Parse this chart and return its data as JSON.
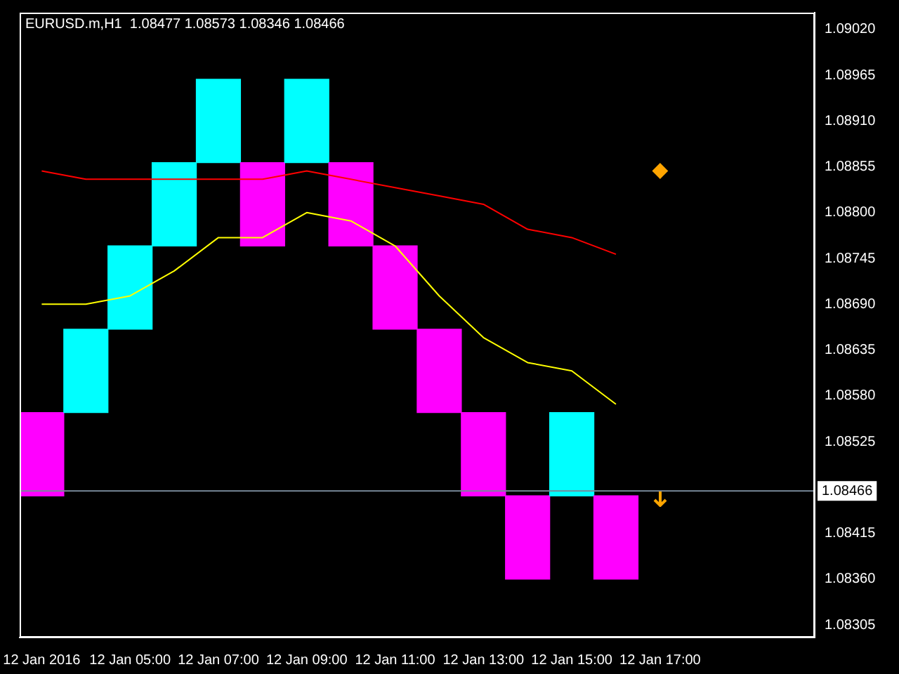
{
  "chart_data": {
    "type": "bar",
    "title": "EURUSD.m,H1  1.08477 1.08573 1.08346 1.08466",
    "categories": [
      "12 Jan 2016",
      null,
      "12 Jan 05:00",
      null,
      "12 Jan 07:00",
      null,
      "12 Jan 09:00",
      null,
      "12 Jan 11:00",
      null,
      "12 Jan 13:00",
      null,
      "12 Jan 15:00",
      null,
      "12 Jan 17:00",
      null,
      null,
      null
    ],
    "series": [
      {
        "values": [
          0.001,
          0.001,
          0.001,
          0.001,
          0.001,
          0.001,
          0.001,
          0.001,
          0.001,
          0.001,
          0.001,
          0.001,
          0.001,
          0.001,
          null,
          null,
          null,
          null
        ],
        "base": [
          1.0846,
          1.0856,
          1.0866,
          1.0876,
          1.0886,
          1.0876,
          1.0886,
          1.0876,
          1.0866,
          1.0856,
          1.0846,
          1.0836,
          1.0846,
          1.0836,
          null,
          null,
          null,
          null
        ],
        "colors": [
          "#ff00ff",
          "#00ffff",
          "#00ffff",
          "#00ffff",
          "#00ffff",
          "#ff00ff",
          "#00ffff",
          "#ff00ff",
          "#ff00ff",
          "#ff00ff",
          "#ff00ff",
          "#ff00ff",
          "#00ffff",
          "#ff00ff",
          null,
          null,
          null,
          null
        ]
      },
      {
        "type": "line",
        "color": "#ffff00",
        "values": [
          1.0869,
          1.0869,
          1.087,
          1.0873,
          1.0877,
          1.0877,
          1.088,
          1.0879,
          1.0876,
          1.087,
          1.0865,
          1.0862,
          1.0861,
          1.0857,
          null,
          null,
          null,
          null
        ]
      },
      {
        "type": "line",
        "color": "#ff0000",
        "values": [
          1.0885,
          1.0884,
          1.0884,
          1.0884,
          1.0884,
          1.0884,
          1.0885,
          1.0884,
          1.0883,
          1.0882,
          1.0881,
          1.0878,
          1.0877,
          1.0875,
          null,
          null,
          null,
          null
        ]
      },
      {
        "type": "scatter",
        "color": "#ffa500",
        "marker": "diamond",
        "values": [
          null,
          null,
          null,
          null,
          null,
          null,
          null,
          null,
          null,
          null,
          null,
          null,
          null,
          null,
          1.0885,
          null,
          null,
          null
        ]
      }
    ],
    "ref_lines": [
      {
        "axis": "y",
        "value": 1.08466,
        "label": "1.08466",
        "color": "#778899"
      }
    ],
    "ylim": [
      1.0829,
      1.0904
    ],
    "yticks": [
      1.08305,
      {
        "value": 1.0836,
        "label": "1.08360"
      },
      1.08415,
      1.08525,
      {
        "value": 1.0858,
        "label": "1.08580"
      },
      1.08635,
      {
        "value": 1.0869,
        "label": "1.08690"
      },
      1.08745,
      {
        "value": 1.088,
        "label": "1.08800"
      },
      1.08855,
      {
        "value": 1.0891,
        "label": "1.08910"
      },
      1.08965,
      {
        "value": 1.0902,
        "label": "1.09020"
      }
    ],
    "grid": false,
    "legend": false
  }
}
